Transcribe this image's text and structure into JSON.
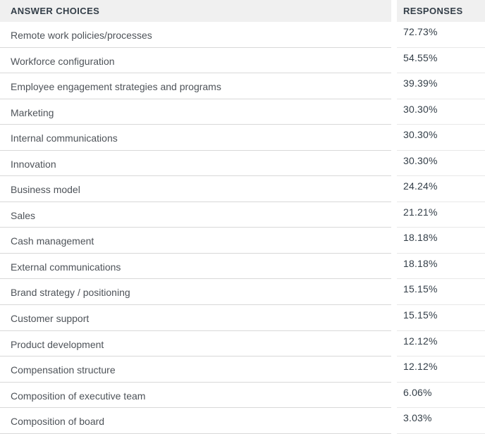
{
  "table": {
    "columns": [
      {
        "label": "ANSWER CHOICES"
      },
      {
        "label": "RESPONSES"
      }
    ],
    "rows": [
      {
        "choice": "Remote work policies/processes",
        "response": "72.73%"
      },
      {
        "choice": "Workforce configuration",
        "response": "54.55%"
      },
      {
        "choice": "Employee engagement strategies and programs",
        "response": "39.39%"
      },
      {
        "choice": "Marketing",
        "response": "30.30%"
      },
      {
        "choice": "Internal communications",
        "response": "30.30%"
      },
      {
        "choice": "Innovation",
        "response": "30.30%"
      },
      {
        "choice": "Business model",
        "response": "24.24%"
      },
      {
        "choice": "Sales",
        "response": "21.21%"
      },
      {
        "choice": "Cash management",
        "response": "18.18%"
      },
      {
        "choice": "External communications",
        "response": "18.18%"
      },
      {
        "choice": "Brand strategy / positioning",
        "response": "15.15%"
      },
      {
        "choice": "Customer support",
        "response": "15.15%"
      },
      {
        "choice": "Product development",
        "response": "12.12%"
      },
      {
        "choice": "Compensation structure",
        "response": "12.12%"
      },
      {
        "choice": "Composition of executive team",
        "response": "6.06%"
      },
      {
        "choice": "Composition of board",
        "response": "3.03%"
      }
    ]
  },
  "chart_data": {
    "type": "table",
    "columns": [
      "ANSWER CHOICES",
      "RESPONSES"
    ],
    "categories": [
      "Remote work policies/processes",
      "Workforce configuration",
      "Employee engagement strategies and programs",
      "Marketing",
      "Internal communications",
      "Innovation",
      "Business model",
      "Sales",
      "Cash management",
      "External communications",
      "Brand strategy / positioning",
      "Customer support",
      "Product development",
      "Compensation structure",
      "Composition of executive team",
      "Composition of board"
    ],
    "values_percent": [
      72.73,
      54.55,
      39.39,
      30.3,
      30.3,
      30.3,
      24.24,
      21.21,
      18.18,
      18.18,
      15.15,
      15.15,
      12.12,
      12.12,
      6.06,
      3.03
    ]
  },
  "colors": {
    "header_bg": "#f0f0f0",
    "header_text": "#333e48",
    "label_text": "#4e5359",
    "value_text": "#333e48",
    "border_left": "#d8d8d8",
    "border_right": "#e8e8e8",
    "page_bg": "#ffffff"
  }
}
